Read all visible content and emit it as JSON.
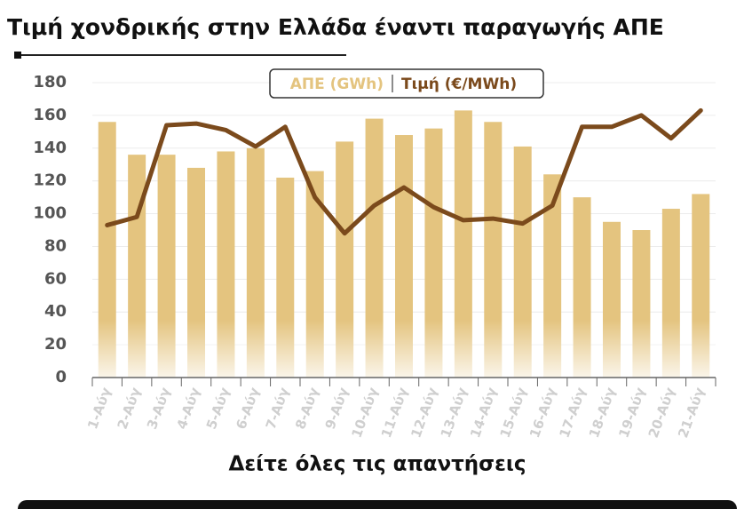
{
  "chart_data": {
    "type": "bar",
    "title": "Τιμή χονδρικής στην Ελλάδα έναντι παραγωγής ΑΠΕ",
    "categories": [
      "1-Αύγ",
      "2-Αύγ",
      "3-Αύγ",
      "4-Αύγ",
      "5-Αύγ",
      "6-Αύγ",
      "7-Αύγ",
      "8-Αύγ",
      "9-Αύγ",
      "10-Αύγ",
      "11-Αύγ",
      "12-Αύγ",
      "13-Αύγ",
      "14-Αύγ",
      "15-Αύγ",
      "16-Αύγ",
      "17-Αύγ",
      "18-Αύγ",
      "19-Αύγ",
      "20-Αύγ",
      "21-Αύγ"
    ],
    "series": [
      {
        "name": "ΑΠΕ (GWh)",
        "type": "bar",
        "color": "#e4c47f",
        "values": [
          156,
          136,
          136,
          128,
          138,
          140,
          122,
          126,
          144,
          158,
          148,
          152,
          163,
          156,
          141,
          124,
          110,
          95,
          90,
          103,
          112
        ]
      },
      {
        "name": "Τιμή (€/MWh)",
        "type": "line",
        "color": "#7b4a1c",
        "values": [
          93,
          98,
          154,
          155,
          151,
          141,
          153,
          110,
          88,
          105,
          116,
          104,
          96,
          97,
          94,
          105,
          153,
          153,
          160,
          146,
          163
        ]
      }
    ],
    "ylim": [
      0,
      180
    ],
    "yticks": [
      0,
      20,
      40,
      60,
      80,
      100,
      120,
      140,
      160,
      180
    ],
    "grid": true
  },
  "link_text": "Δείτε όλες τις απαντήσεις"
}
